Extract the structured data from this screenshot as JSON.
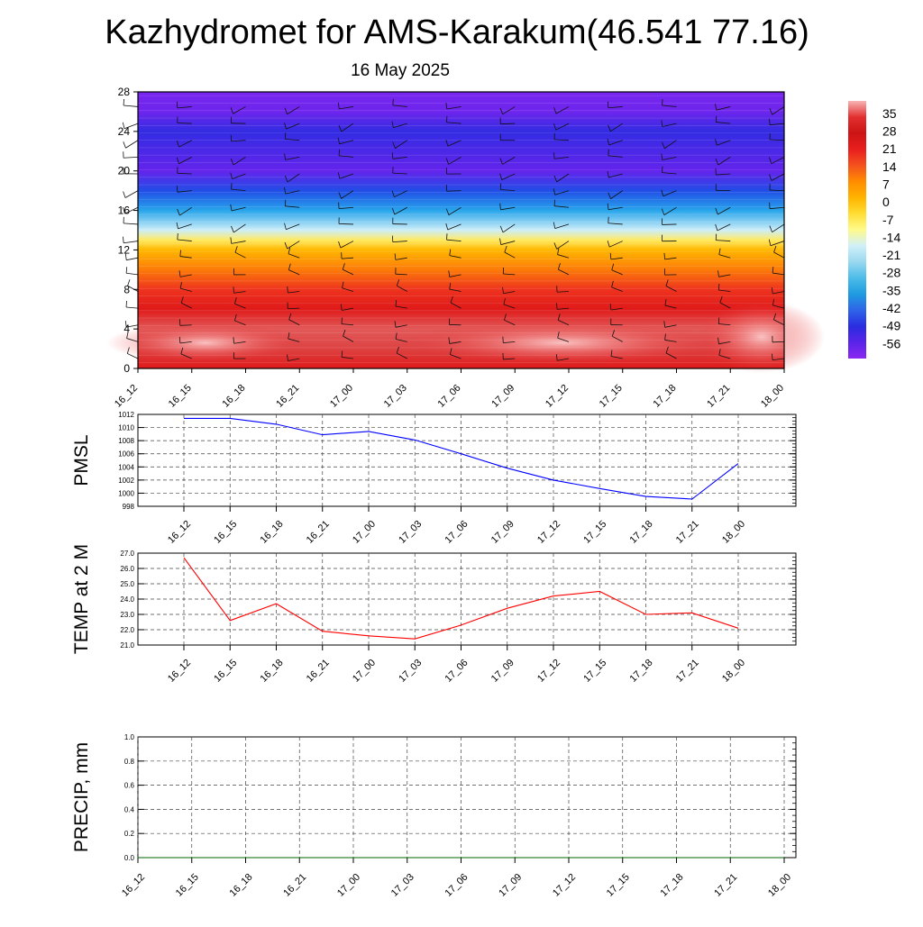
{
  "header": {
    "title": "Kazhydromet for AMS-Karakum(46.541 77.16)",
    "subtitle": "16 May 2025"
  },
  "chart_data": [
    {
      "type": "heatmap",
      "title": "Kazhydromet for AMS-Karakum(46.541 77.16)",
      "subtitle": "16 May 2025",
      "x": [
        "16_12",
        "16_15",
        "16_18",
        "16_21",
        "17_00",
        "17_03",
        "17_06",
        "17_09",
        "17_12",
        "17_15",
        "17_18",
        "17_21",
        "18_00"
      ],
      "yticks": [
        0,
        4,
        8,
        12,
        16,
        20,
        24,
        28
      ],
      "ylim": [
        0,
        28
      ],
      "profile_levels": [
        0,
        2,
        4,
        6,
        8,
        10,
        12,
        13,
        14,
        16,
        18,
        20,
        22,
        24,
        26,
        28
      ],
      "profile_values": [
        24,
        30,
        31,
        24,
        18,
        9,
        1,
        -6,
        -14,
        -28,
        -44,
        -56,
        -53,
        -50,
        -58,
        -60
      ],
      "colorbar": {
        "ticks": [
          "35",
          "28",
          "21",
          "14",
          "7",
          "0",
          "-7",
          "-14",
          "-21",
          "-28",
          "-35",
          "-42",
          "-49",
          "-56"
        ],
        "colors": [
          "#f7b4b4",
          "#e23030",
          "#cc1414",
          "#e81e1e",
          "#f4511e",
          "#ff8c00",
          "#ffb300",
          "#ffdd33",
          "#fffa8c",
          "#d0f0f8",
          "#9ad8f0",
          "#4cbce8",
          "#1e9be0",
          "#2f63e8",
          "#2a2de0",
          "#5a24e8",
          "#8a28f0"
        ]
      }
    },
    {
      "type": "line",
      "ylabel": "PMSL",
      "x": [
        "16_12",
        "16_15",
        "16_18",
        "16_21",
        "17_00",
        "17_03",
        "17_06",
        "17_09",
        "17_12",
        "17_15",
        "17_18",
        "17_21",
        "18_00"
      ],
      "yticks": [
        "998",
        "1000",
        "1002",
        "1004",
        "1006",
        "1008",
        "1010",
        "1012"
      ],
      "ylim": [
        998,
        1012
      ],
      "series": [
        {
          "values": [
            1011.4,
            1011.4,
            1010.5,
            1008.9,
            1009.4,
            1008.1,
            1006.0,
            1003.8,
            1002.0,
            1000.7,
            999.5,
            999.1,
            1004.5
          ],
          "color": "#0000ff"
        }
      ],
      "grid": true
    },
    {
      "type": "line",
      "ylabel": "TEMP at 2 M",
      "x": [
        "16_12",
        "16_15",
        "16_18",
        "16_21",
        "17_00",
        "17_03",
        "17_06",
        "17_09",
        "17_12",
        "17_15",
        "17_18",
        "17_21",
        "18_00"
      ],
      "yticks": [
        "21.0",
        "22.0",
        "23.0",
        "24.0",
        "25.0",
        "26.0",
        "27.0"
      ],
      "ylim": [
        21,
        27
      ],
      "series": [
        {
          "values": [
            26.7,
            22.6,
            23.7,
            21.9,
            21.6,
            21.4,
            22.3,
            23.4,
            24.2,
            24.5,
            23.0,
            23.1,
            22.1
          ],
          "color": "#ff0000"
        }
      ],
      "grid": true
    },
    {
      "type": "line",
      "ylabel": "PRECIP, mm",
      "x": [
        "16_12",
        "16_15",
        "16_18",
        "16_21",
        "17_00",
        "17_03",
        "17_06",
        "17_09",
        "17_12",
        "17_15",
        "17_18",
        "17_21",
        "18_00"
      ],
      "yticks": [
        "0.0",
        "0.2",
        "0.4",
        "0.6",
        "0.8",
        "1.0"
      ],
      "ylim": [
        0,
        1
      ],
      "series": [
        {
          "values": [
            0,
            0,
            0,
            0,
            0,
            0,
            0,
            0,
            0,
            0,
            0,
            0,
            0
          ],
          "color": "#006400"
        }
      ],
      "grid": true
    }
  ]
}
